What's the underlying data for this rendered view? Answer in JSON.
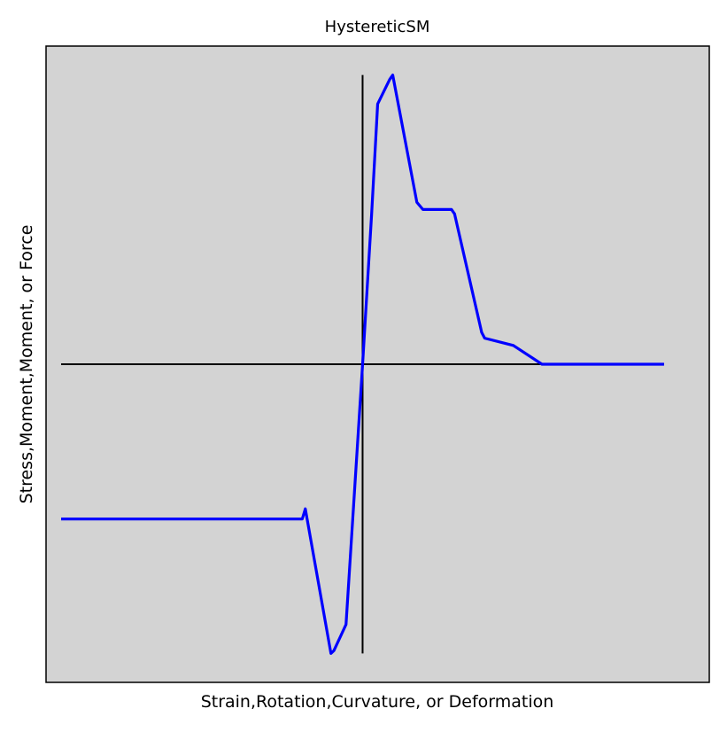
{
  "chart_data": {
    "type": "line",
    "title": "HystereticSM",
    "xlabel": "Strain,Rotation,Curvature, or Deformation",
    "ylabel": "Stress,Moment,Moment, or Force",
    "ticks_visible": false,
    "grid": false,
    "legend": "none",
    "xlim": [
      -1.05,
      1.15
    ],
    "ylim": [
      -1.1,
      1.1
    ],
    "axes_lines": {
      "horizontal": {
        "y": 0,
        "x_from": -1.0,
        "x_to": 1.0
      },
      "vertical": {
        "x": 0,
        "y_from": -1.0,
        "y_to": 1.0
      }
    },
    "series": [
      {
        "values": [
          [
            -1.0,
            -0.535
          ],
          [
            -0.2,
            -0.535
          ],
          [
            -0.19,
            -0.5
          ],
          [
            -0.105,
            -1.0
          ],
          [
            -0.095,
            -0.99
          ],
          [
            -0.055,
            -0.9
          ],
          [
            0.0,
            0.0
          ],
          [
            0.03,
            0.52
          ],
          [
            0.05,
            0.9
          ],
          [
            0.09,
            0.985
          ],
          [
            0.1,
            1.0
          ],
          [
            0.18,
            0.56
          ],
          [
            0.2,
            0.535
          ],
          [
            0.295,
            0.535
          ],
          [
            0.305,
            0.52
          ],
          [
            0.395,
            0.11
          ],
          [
            0.405,
            0.09
          ],
          [
            0.5,
            0.065
          ],
          [
            0.595,
            0.0
          ],
          [
            1.0,
            0.0
          ]
        ]
      }
    ],
    "colors": {
      "background": "#d3d3d3",
      "series": "#0000ff",
      "axes_lines": "#000000",
      "frame": "#000000"
    }
  }
}
